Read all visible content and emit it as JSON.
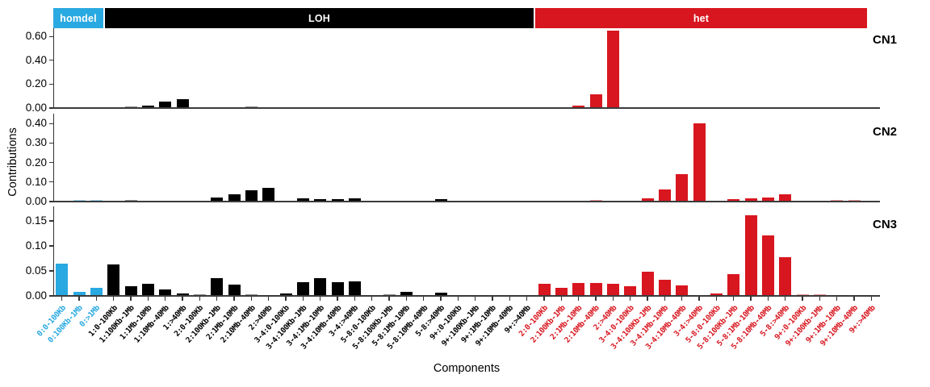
{
  "figure_title": "",
  "colors": {
    "homdel": "#29A9E1",
    "LOH": "#000000",
    "het": "#D8161F",
    "axis": "#3b3b3b",
    "background": "#ffffff"
  },
  "chart_data": {
    "type": "bar",
    "xlabel": "Components",
    "ylabel": "Contributions",
    "legend_position": "top-strip",
    "grid": false,
    "category_groups": [
      {
        "name": "homdel",
        "color": "#29A9E1",
        "categories": [
          "0:0-100Kb",
          "0:100Kb-1Mb",
          "0:>1Mb"
        ]
      },
      {
        "name": "LOH",
        "color": "#000000",
        "categories": [
          "1:0-100Kb",
          "1:100Kb-1Mb",
          "1:1Mb-10Mb",
          "1:10Mb-40Mb",
          "1:>40Mb",
          "2:0-100Kb",
          "2:100Kb-1Mb",
          "2:1Mb-10Mb",
          "2:10Mb-40Mb",
          "2:>40Mb",
          "3-4:0-100Kb",
          "3-4:100Kb-1Mb",
          "3-4:1Mb-10Mb",
          "3-4:10Mb-40Mb",
          "3-4:>40Mb",
          "5-8:0-100Kb",
          "5-8:100Kb-1Mb",
          "5-8:1Mb-10Mb",
          "5-8:10Mb-40Mb",
          "5-8:>40Mb",
          "9+:0-100Kb",
          "9+:100Kb-1Mb",
          "9+:1Mb-10Mb",
          "9+:10Mb-40Mb",
          "9+:>40Mb"
        ]
      },
      {
        "name": "het",
        "color": "#D8161F",
        "categories": [
          "2:0-100Kb",
          "2:100Kb-1Mb",
          "2:1Mb-10Mb",
          "2:10Mb-40Mb",
          "2:>40Mb",
          "3-4:0-100Kb",
          "3-4:100Kb-1Mb",
          "3-4:1Mb-10Mb",
          "3-4:10Mb-40Mb",
          "3-4:>40Mb",
          "5-8:0-100Kb",
          "5-8:100Kb-1Mb",
          "5-8:1Mb-10Mb",
          "5-8:10Mb-40Mb",
          "5-8:>40Mb",
          "9+:0-100Kb",
          "9+:100Kb-1Mb",
          "9+:1Mb-10Mb",
          "9+:10Mb-40Mb",
          "9+:>40Mb"
        ]
      }
    ],
    "panels": [
      {
        "name": "CN1",
        "y_ticks": [
          0.0,
          0.2,
          0.4,
          0.6
        ],
        "ylim": [
          0,
          0.68
        ],
        "values": [
          0,
          0,
          0,
          0,
          0.005,
          0.012,
          0.044,
          0.065,
          0,
          0,
          0,
          0.004,
          0,
          0,
          0,
          0,
          0,
          0,
          0,
          0,
          0,
          0,
          0,
          0,
          0,
          0,
          0,
          0,
          0,
          0,
          0.012,
          0.105,
          0.64,
          0,
          0,
          0,
          0,
          0,
          0,
          0,
          0,
          0,
          0,
          0,
          0,
          0,
          0,
          0
        ]
      },
      {
        "name": "CN2",
        "y_ticks": [
          0.0,
          0.1,
          0.2,
          0.3,
          0.4
        ],
        "ylim": [
          0,
          0.45
        ],
        "values": [
          0,
          0.004,
          0.002,
          0,
          0.003,
          0,
          0,
          0,
          0,
          0.016,
          0.031,
          0.052,
          0.067,
          0,
          0.012,
          0.01,
          0.007,
          0.013,
          0,
          0,
          0,
          0,
          0.007,
          0,
          0,
          0,
          0,
          0,
          0,
          0,
          0,
          0.002,
          0,
          0,
          0.011,
          0.057,
          0.138,
          0.395,
          0,
          0.007,
          0.013,
          0.017,
          0.033,
          0,
          0,
          0.002,
          0.002,
          0
        ]
      },
      {
        "name": "CN3",
        "y_ticks": [
          0.0,
          0.05,
          0.1,
          0.15
        ],
        "ylim": [
          0,
          0.18
        ],
        "values": [
          0.063,
          0.007,
          0.015,
          0.061,
          0.018,
          0.023,
          0.011,
          0.004,
          0.002,
          0.034,
          0.021,
          0.002,
          0,
          0.003,
          0.026,
          0.034,
          0.026,
          0.027,
          0,
          0.002,
          0.006,
          0,
          0.005,
          0,
          0,
          0,
          0,
          0,
          0.023,
          0.015,
          0.024,
          0.024,
          0.023,
          0.018,
          0.046,
          0.03,
          0.019,
          0,
          0.004,
          0.042,
          0.16,
          0.12,
          0.076,
          0.002,
          0.002,
          0,
          0,
          0
        ]
      }
    ]
  }
}
